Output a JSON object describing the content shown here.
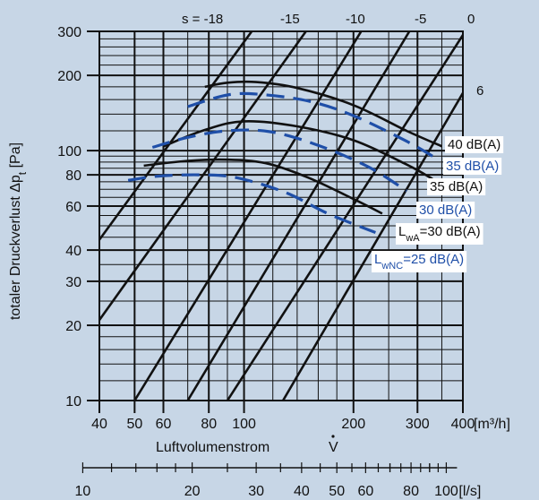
{
  "chart_data": {
    "type": "line",
    "x_scale": "log",
    "y_scale": "log",
    "xlim": [
      40,
      400
    ],
    "ylim": [
      10,
      300
    ],
    "grid": true,
    "x_tick_labels": [
      "40",
      "50",
      "60",
      "80",
      "100",
      "200",
      "300",
      "400"
    ],
    "x_unit": "[m³/h]",
    "xlabel": "Luftvolumenstrom",
    "xlabel_symbol": "V",
    "x2_tick_labels": [
      "10",
      "20",
      "30",
      "40",
      "50",
      "60",
      "80",
      "100"
    ],
    "x2_unit": "[l/s]",
    "y_tick_labels": [
      "10",
      "20",
      "30",
      "40",
      "60",
      "80",
      "100",
      "200",
      "300"
    ],
    "ylabel": "totaler Druckverlust",
    "ylabel_symbol": "Δp",
    "ylabel_symbol_sub": "t",
    "ylabel_unit": "[Pa]",
    "s_labels": [
      {
        "text": "s = -18",
        "value": -18
      },
      {
        "text": "-15",
        "value": -15
      },
      {
        "text": "-10",
        "value": -10
      },
      {
        "text": "-5",
        "value": -5
      },
      {
        "text": "0",
        "value": 0
      },
      {
        "text": "6",
        "value": 6
      }
    ],
    "s_lines": [
      {
        "s": -18,
        "points": [
          [
            40,
            44
          ],
          [
            105,
            300
          ]
        ]
      },
      {
        "s": -15,
        "points": [
          [
            40,
            21
          ],
          [
            148,
            300
          ]
        ]
      },
      {
        "s": -10,
        "points": [
          [
            50,
            10
          ],
          [
            210,
            300
          ]
        ]
      },
      {
        "s": -5,
        "points": [
          [
            70,
            10
          ],
          [
            285,
            300
          ]
        ]
      },
      {
        "s": 0,
        "points": [
          [
            90,
            10
          ],
          [
            400,
            290
          ]
        ]
      },
      {
        "s": 6,
        "points": [
          [
            128,
            10
          ],
          [
            400,
            170
          ]
        ]
      }
    ],
    "series": [
      {
        "name": "40 dB(A)",
        "color": "#111111",
        "dash": false,
        "points": [
          [
            78,
            180
          ],
          [
            90,
            187
          ],
          [
            108,
            188
          ],
          [
            140,
            178
          ],
          [
            200,
            152
          ],
          [
            280,
            120
          ],
          [
            350,
            104
          ]
        ]
      },
      {
        "name": "35 dB(A)",
        "color": "#111111",
        "dash": false,
        "points": [
          [
            60,
            104
          ],
          [
            78,
            121
          ],
          [
            100,
            131
          ],
          [
            140,
            125
          ],
          [
            200,
            110
          ],
          [
            280,
            88
          ],
          [
            330,
            77
          ]
        ]
      },
      {
        "name": "30 dB(A)",
        "color": "#111111",
        "dash": false,
        "points": [
          [
            53,
            87
          ],
          [
            70,
            91
          ],
          [
            90,
            92
          ],
          [
            115,
            89
          ],
          [
            150,
            78
          ],
          [
            200,
            64
          ],
          [
            240,
            56
          ]
        ]
      },
      {
        "name": "35 dB(A)",
        "color": "#1f4fa8",
        "dash": true,
        "points": [
          [
            70,
            150
          ],
          [
            90,
            167
          ],
          [
            110,
            168
          ],
          [
            150,
            158
          ],
          [
            200,
            138
          ],
          [
            280,
            109
          ],
          [
            330,
            95
          ]
        ]
      },
      {
        "name": "30 dB(A)",
        "color": "#1f4fa8",
        "dash": true,
        "points": [
          [
            56,
            103
          ],
          [
            70,
            113
          ],
          [
            90,
            120
          ],
          [
            118,
            119
          ],
          [
            160,
            105
          ],
          [
            220,
            86
          ],
          [
            280,
            69
          ]
        ]
      },
      {
        "name": "25 dB(A)",
        "color": "#1f4fa8",
        "dash": true,
        "points": [
          [
            48,
            76
          ],
          [
            58,
            79
          ],
          [
            75,
            80
          ],
          [
            95,
            78
          ],
          [
            130,
            68
          ],
          [
            170,
            56
          ],
          [
            230,
            47
          ]
        ]
      }
    ],
    "annotations": [
      {
        "text": "40 dB(A)",
        "color": "#111111"
      },
      {
        "text": "35 dB(A)",
        "color": "#1f4fa8"
      },
      {
        "text": "35 dB(A)",
        "color": "#111111"
      },
      {
        "text": "30 dB(A)",
        "color": "#1f4fa8"
      },
      {
        "text": "L",
        "sub": "wA",
        "rest": "=30 dB(A)",
        "color": "#111111"
      },
      {
        "text": "L",
        "sub": "wNC",
        "rest": "=25 dB(A)",
        "color": "#1f4fa8"
      }
    ],
    "background_color": "#c7d6e6",
    "grid_color": "#111111"
  }
}
